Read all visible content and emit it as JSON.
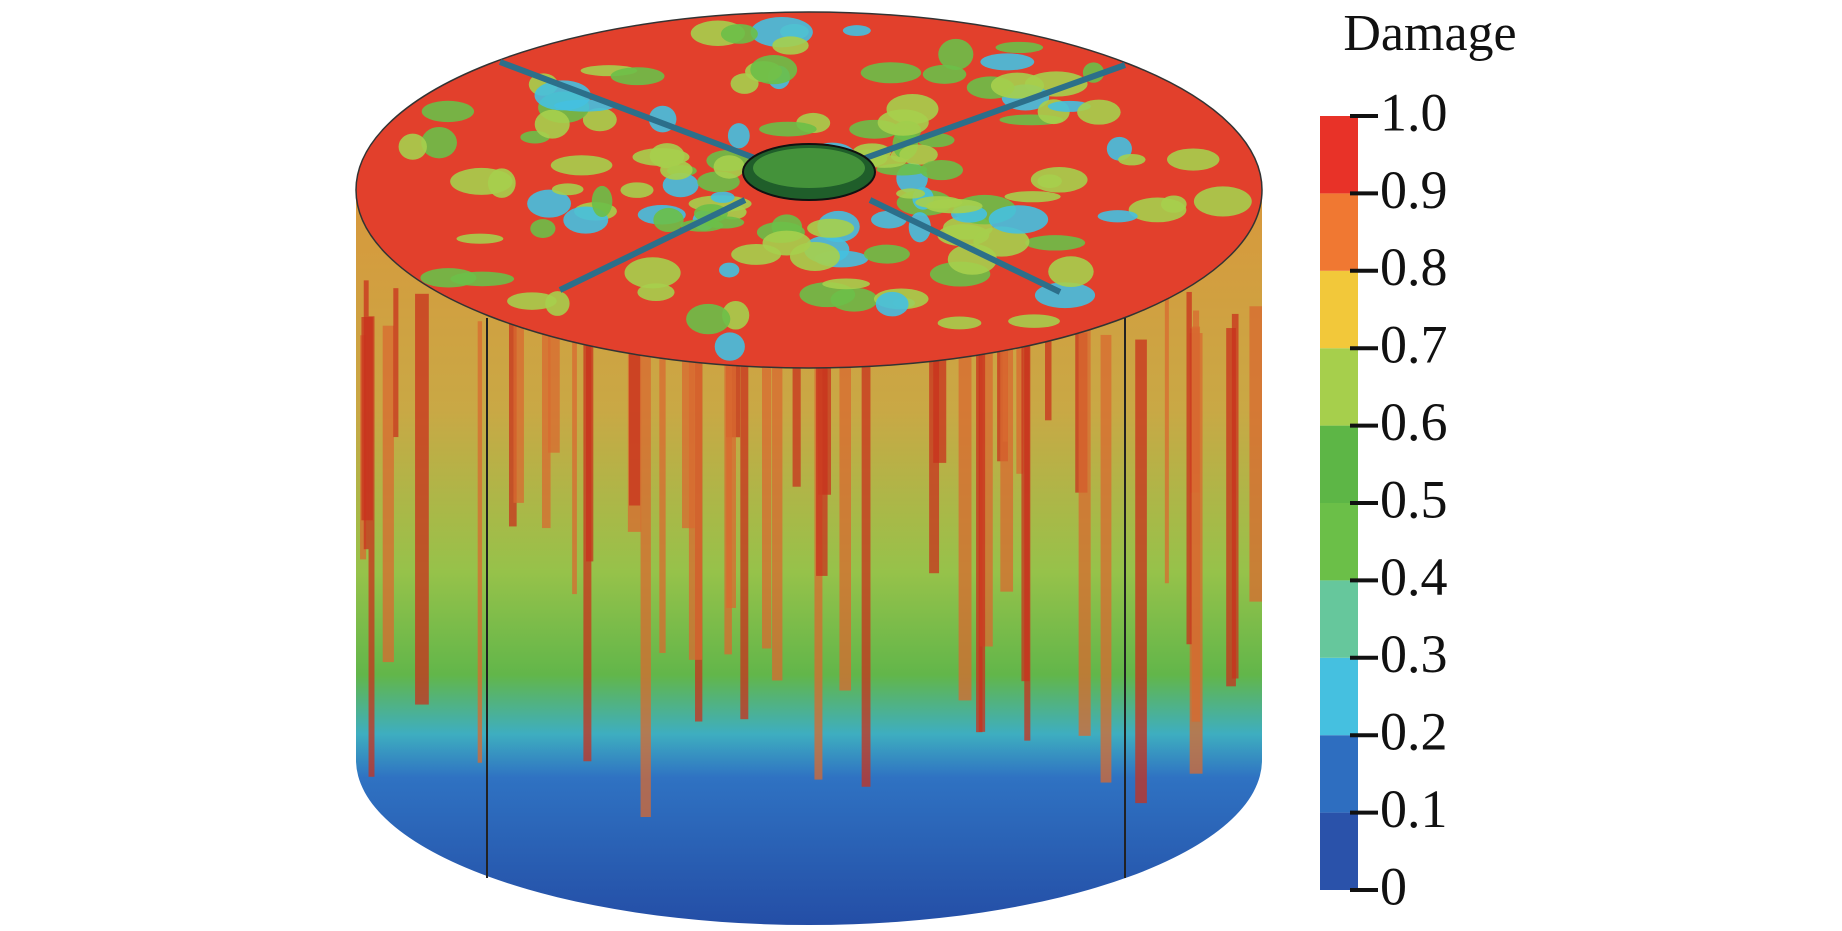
{
  "legend": {
    "title": "Damage",
    "ticks": [
      0,
      0.1,
      0.2,
      0.3,
      0.4,
      0.5,
      0.6,
      0.7,
      0.8,
      0.9,
      {
        "value": 1,
        "label": "1.0"
      }
    ],
    "colors": [
      "#2a52aa",
      "#2e6ec0",
      "#45c0e0",
      "#66c79c",
      "#6bbf48",
      "#5db646",
      "#a6cf4c",
      "#f2c83a",
      "#f07832",
      "#e83228"
    ]
  }
}
